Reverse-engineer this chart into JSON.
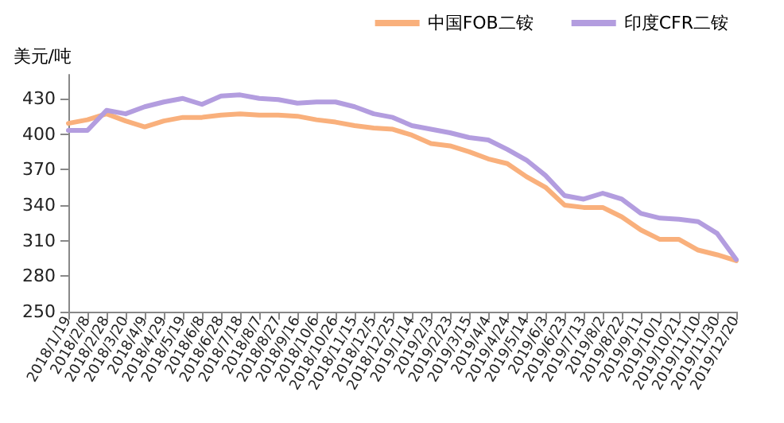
{
  "chart_data": {
    "type": "line",
    "ylabel": "美元/吨",
    "categories": [
      "2018/1/19",
      "2018/2/8",
      "2018/2/28",
      "2018/3/20",
      "2018/4/9",
      "2018/4/29",
      "2018/5/19",
      "2018/6/8",
      "2018/6/28",
      "2018/7/18",
      "2018/8/7",
      "2018/8/27",
      "2018/9/16",
      "2018/10/6",
      "2018/10/26",
      "2018/11/15",
      "2018/12/5",
      "2018/12/25",
      "2019/1/14",
      "2019/2/3",
      "2019/2/23",
      "2019/3/15",
      "2019/4/4",
      "2019/4/24",
      "2019/5/14",
      "2019/6/3",
      "2019/6/23",
      "2019/7/13",
      "2019/8/2",
      "2019/8/22",
      "2019/9/11",
      "2019/10/1",
      "2019/10/21",
      "2019/11/10",
      "2019/11/30",
      "2019/12/20"
    ],
    "series": [
      {
        "name": "中国FOB二铵",
        "color": "#f9b07c",
        "values": [
          409,
          412,
          417,
          411,
          406,
          411,
          414,
          414,
          416,
          417,
          416,
          416,
          415,
          412,
          410,
          407,
          405,
          404,
          399,
          392,
          390,
          385,
          379,
          375,
          364,
          355,
          340,
          338,
          338,
          330,
          319,
          311,
          311,
          302,
          298,
          293
        ]
      },
      {
        "name": "印度CFR二铵",
        "color": "#b39ddf",
        "values": [
          403,
          403,
          420,
          417,
          423,
          427,
          430,
          425,
          432,
          433,
          430,
          429,
          426,
          427,
          427,
          423,
          417,
          414,
          407,
          404,
          401,
          397,
          395,
          387,
          378,
          365,
          348,
          345,
          350,
          345,
          333,
          329,
          328,
          326,
          316,
          294
        ]
      }
    ],
    "ylim": [
      250,
      450
    ],
    "yticks": [
      250,
      280,
      310,
      340,
      370,
      400,
      430
    ],
    "grid": false,
    "legend": "top right",
    "marker": "none",
    "line_style": "solid"
  }
}
